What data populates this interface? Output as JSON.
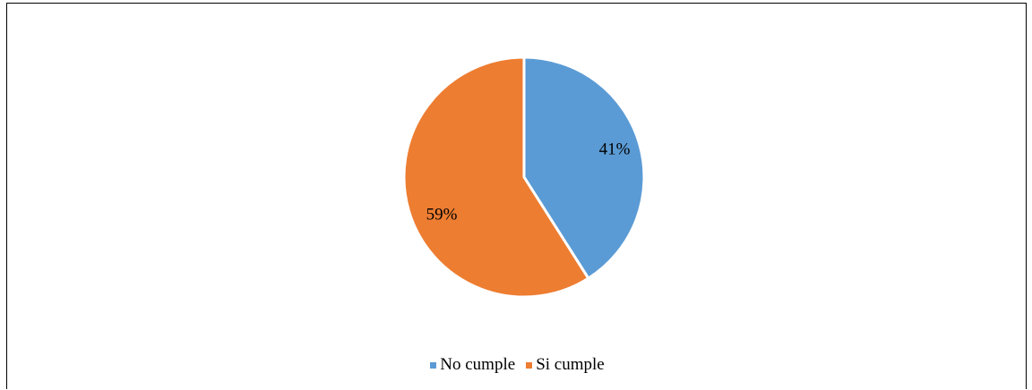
{
  "chart_data": {
    "type": "pie",
    "categories": [
      "No cumple",
      "Si cumple"
    ],
    "values": [
      41,
      59
    ],
    "data_labels": [
      "41%",
      "59%"
    ],
    "colors": [
      "#5B9BD5",
      "#ED7D31"
    ],
    "title": "",
    "legend_position": "bottom"
  }
}
